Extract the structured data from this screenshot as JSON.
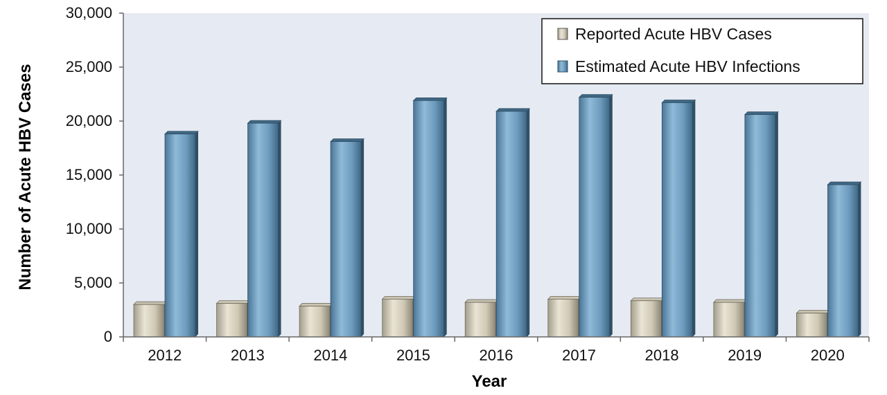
{
  "chart_data": {
    "type": "bar",
    "title": "",
    "xlabel": "Year",
    "ylabel": "Number of Acute HBV Cases",
    "categories": [
      "2012",
      "2013",
      "2014",
      "2015",
      "2016",
      "2017",
      "2018",
      "2019",
      "2020"
    ],
    "series": [
      {
        "name": "Reported Acute HBV Cases",
        "values": [
          3000,
          3100,
          2850,
          3500,
          3200,
          3500,
          3350,
          3200,
          2200
        ],
        "color": "#d8d2c0"
      },
      {
        "name": "Estimated Acute HBV Infections",
        "values": [
          18800,
          19800,
          18100,
          21900,
          20900,
          22200,
          21700,
          20600,
          14100
        ],
        "color": "#6f9fc4"
      }
    ],
    "ylim": [
      0,
      30000
    ],
    "yticks": [
      0,
      5000,
      10000,
      15000,
      20000,
      25000,
      30000
    ],
    "ytick_labels": [
      "0",
      "5,000",
      "10,000",
      "15,000",
      "20,000",
      "25,000",
      "30,000"
    ],
    "legend": "top-right",
    "grid": false,
    "plot_background": "#e6eaf2"
  }
}
